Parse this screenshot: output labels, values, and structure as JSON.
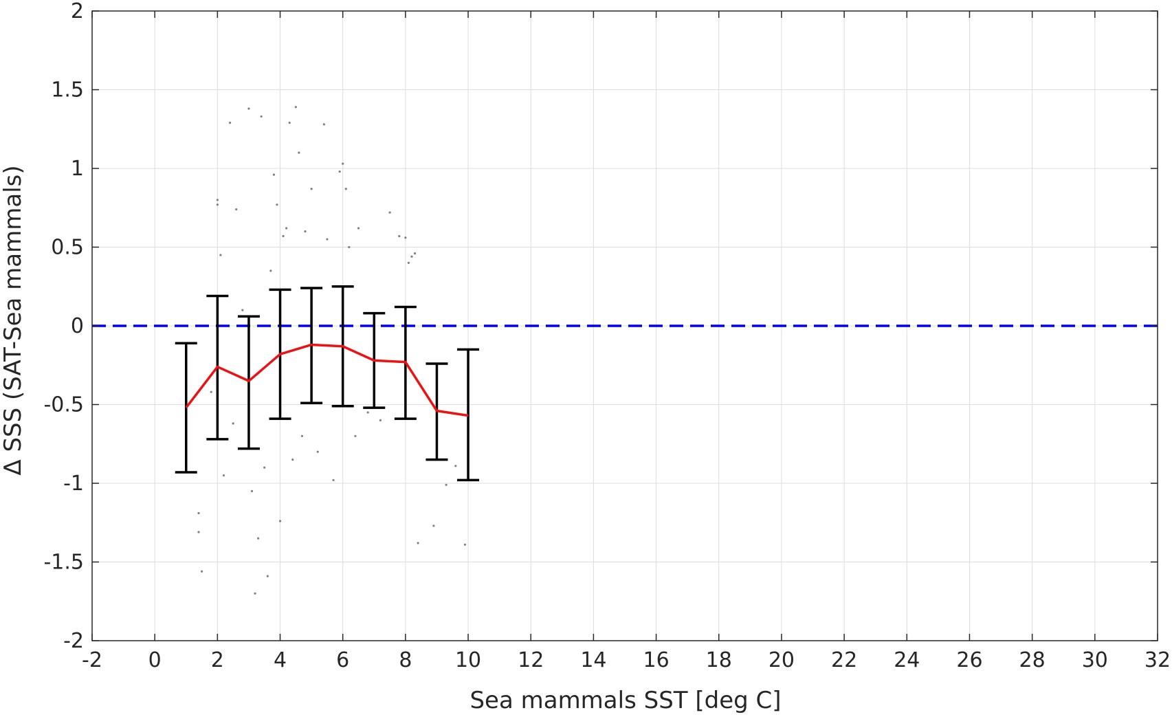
{
  "chart_data": {
    "type": "scatter",
    "xlabel": "Sea mammals SST [deg C]",
    "ylabel": "Δ SSS (SAT-Sea mammals)",
    "xlim": [
      -2,
      32
    ],
    "ylim": [
      -2,
      2
    ],
    "xticks": [
      -2,
      0,
      2,
      4,
      6,
      8,
      10,
      12,
      14,
      16,
      18,
      20,
      22,
      24,
      26,
      28,
      30,
      32
    ],
    "yticks": [
      2,
      1.5,
      1,
      0.5,
      0,
      -0.5,
      -1,
      -1.5,
      -2
    ],
    "ytick_labels": [
      "2",
      "1.5",
      "1",
      "0.5",
      "0",
      "-0.5",
      "-1",
      "-1.5",
      "-2"
    ],
    "grid": true,
    "legend": "none",
    "reference_line": {
      "y": 0,
      "style": "dashed",
      "color": "#0000ee"
    },
    "mean_line": {
      "color": "#ee1111",
      "x": [
        1,
        2,
        3,
        4,
        5,
        6,
        7,
        8,
        9,
        10
      ],
      "y": [
        -0.52,
        -0.26,
        -0.35,
        -0.18,
        -0.12,
        -0.13,
        -0.22,
        -0.23,
        -0.54,
        -0.57
      ]
    },
    "error_bars": {
      "color": "#000000",
      "x": [
        1,
        2,
        3,
        4,
        5,
        6,
        7,
        8,
        9,
        10
      ],
      "upper": [
        -0.11,
        0.19,
        0.06,
        0.23,
        0.24,
        0.25,
        0.08,
        0.12,
        -0.24,
        -0.15
      ],
      "lower": [
        -0.93,
        -0.72,
        -0.78,
        -0.59,
        -0.49,
        -0.51,
        -0.52,
        -0.59,
        -0.85,
        -0.98
      ]
    },
    "scatter_points": {
      "color": "#808080",
      "x": [
        1.4,
        1.4,
        1.5,
        2.0,
        2.0,
        2.1,
        2.4,
        2.6,
        3.0,
        3.2,
        3.3,
        3.4,
        3.6,
        3.8,
        3.9,
        4.0,
        4.1,
        4.2,
        4.3,
        4.5,
        4.6,
        4.8,
        5.0,
        5.4,
        5.5,
        5.9,
        6.0,
        6.1,
        6.2,
        6.5,
        7.5,
        7.8,
        8.0,
        8.1,
        8.2,
        8.3,
        8.9,
        9.3,
        9.6,
        9.9,
        3.5,
        4.4,
        5.2,
        2.2,
        3.1,
        6.8,
        7.2,
        1.8,
        2.5,
        5.7,
        4.7,
        3.7,
        6.4,
        7.0,
        2.8,
        8.4
      ],
      "y": [
        -1.19,
        -1.31,
        -1.56,
        0.8,
        0.77,
        0.45,
        1.29,
        0.74,
        1.38,
        -1.7,
        -1.35,
        1.33,
        -1.59,
        0.96,
        0.77,
        -1.24,
        0.57,
        0.62,
        1.29,
        1.39,
        1.1,
        0.6,
        0.87,
        1.28,
        0.55,
        0.98,
        1.03,
        0.87,
        0.5,
        0.62,
        0.72,
        0.57,
        0.56,
        0.4,
        0.44,
        0.46,
        -1.27,
        -1.01,
        -0.89,
        -1.39,
        -0.9,
        -0.85,
        -0.8,
        -0.95,
        -1.05,
        -0.55,
        -0.6,
        -0.42,
        -0.62,
        -0.98,
        -0.7,
        0.35,
        -0.7,
        -0.4,
        0.1,
        -1.38
      ]
    }
  }
}
